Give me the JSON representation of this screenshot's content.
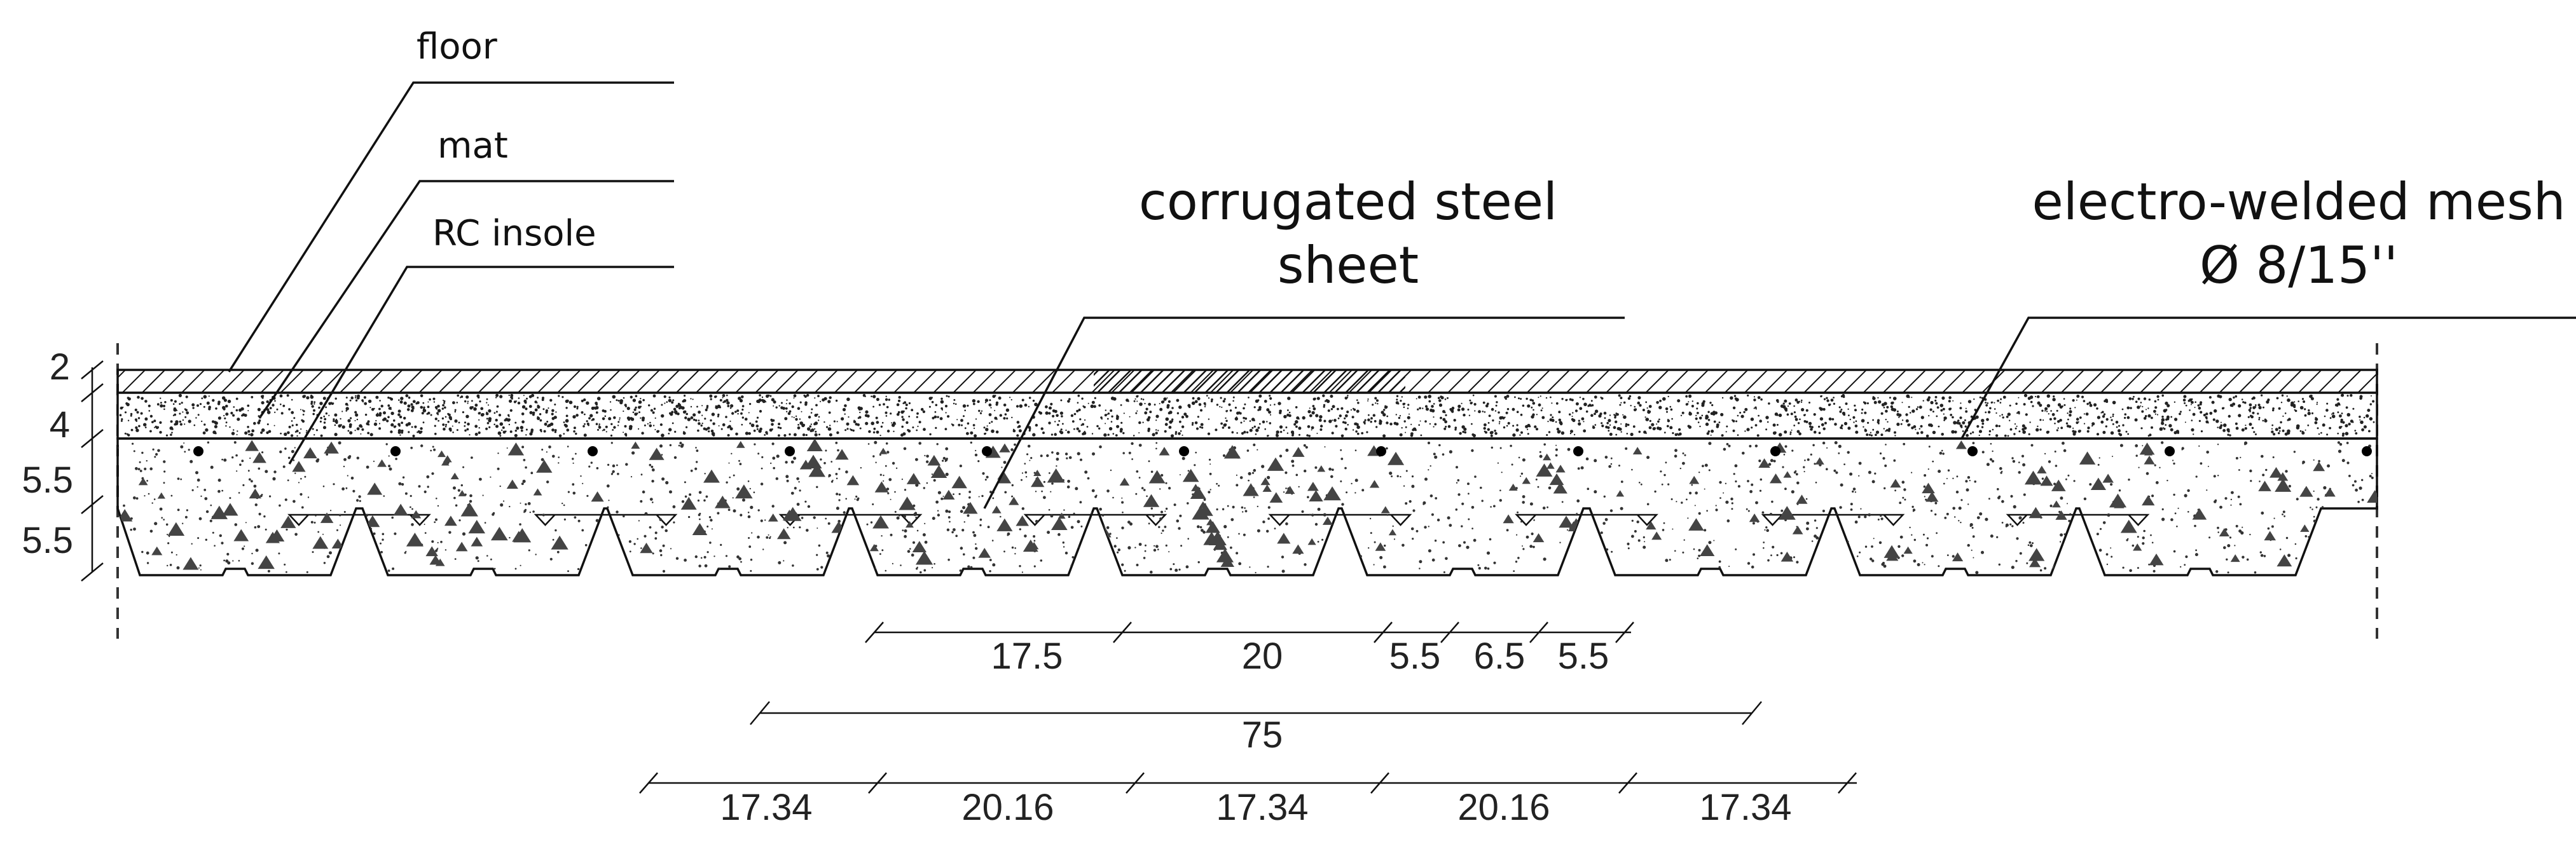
{
  "labels": {
    "floor": "floor",
    "mat": "mat",
    "rc_insole": "RC insole",
    "corrugated_line1": "corrugated steel",
    "corrugated_line2": "sheet",
    "mesh_line1": "electro-welded mesh",
    "mesh_line2": "Ø 8/15''"
  },
  "layer_thickness": {
    "floor": "2",
    "mat": "4",
    "insole": "5.5",
    "rib": "5.5"
  },
  "dimensions": {
    "row1": [
      "17.5",
      "20",
      "5.5",
      "6.5",
      "5.5"
    ],
    "row2": [
      "75"
    ],
    "row3": [
      "17.34",
      "20.16",
      "17.34",
      "20.16",
      "17.34"
    ]
  },
  "colors": {
    "line": "#111111",
    "background": "#ffffff"
  }
}
